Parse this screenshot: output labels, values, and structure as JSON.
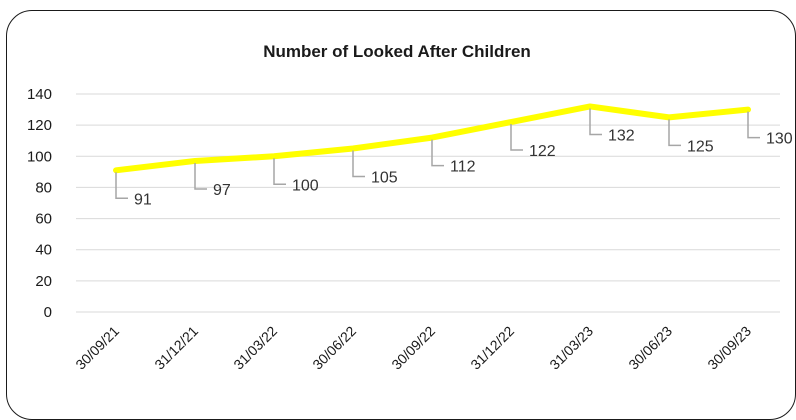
{
  "chart_data": {
    "type": "line",
    "title": "Number of Looked After Children",
    "xlabel": "",
    "ylabel": "",
    "categories": [
      "30/09/21",
      "31/12/21",
      "31/03/22",
      "30/06/22",
      "30/09/22",
      "31/12/22",
      "31/03/23",
      "30/06/23",
      "30/09/23"
    ],
    "series": [
      {
        "values": [
          91,
          97,
          100,
          105,
          112,
          122,
          132,
          125,
          130
        ],
        "color": "#ffff00"
      }
    ],
    "ylim": [
      0,
      140
    ],
    "yticks": [
      0,
      20,
      40,
      60,
      80,
      100,
      120,
      140
    ],
    "grid": true,
    "legend": "none",
    "colors": {
      "gridline": "#d9d9d9",
      "leader": "#a6a6a6",
      "line": "#ffff00"
    }
  }
}
